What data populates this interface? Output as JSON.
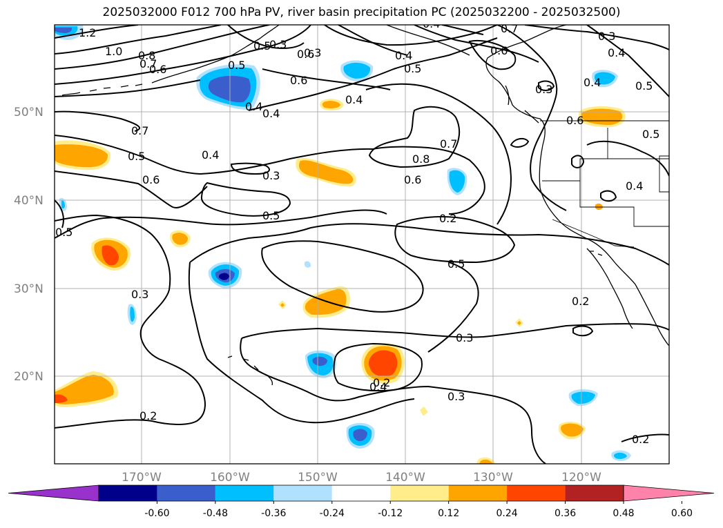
{
  "title": "2025032000 F012 700 hPa PV, river basin precipitation PC (2025032200 - 2025032500)",
  "lat_labels": [
    "50°N",
    "40°N",
    "30°N",
    "20°N"
  ],
  "lon_labels": [
    "170°W",
    "160°W",
    "150°W",
    "140°W",
    "130°W",
    "120°W"
  ],
  "colorbar": {
    "colors": [
      "#9932cc",
      "#00008b",
      "#3a5fcd",
      "#00bfff",
      "#b0e2ff",
      "#ffffff",
      "#ffec8b",
      "#ffa500",
      "#ff4500",
      "#b22222",
      "#ff82ab"
    ],
    "ticks": [
      "-0.60",
      "-0.48",
      "-0.36",
      "-0.24",
      "-0.12",
      "0.12",
      "0.24",
      "0.36",
      "0.48",
      "0.60"
    ]
  },
  "contour_labels": [
    "1.2",
    "1.0",
    "0.8",
    "0.7",
    "0.6",
    "0.7",
    "0.5",
    "0.5",
    "0.6",
    "0.5",
    "0.4",
    "0.4",
    "0.6",
    "0.5",
    "0.4",
    "0.3",
    "0.5",
    "0.3",
    "0.2",
    "0.2",
    "0.3",
    "0.5",
    "0.4",
    "0.3",
    "0.2",
    "0.6",
    "0.7",
    "0.8",
    "0.6",
    "0.4",
    "0.5",
    "0.3",
    "0.7",
    "0.6",
    "0.3",
    "0.4",
    "0.5",
    "0.4",
    "0.4",
    "0.2",
    "0.2",
    "0.3",
    "0.3",
    "0.4",
    "0.7",
    "0.4",
    "0.6",
    "0.5"
  ]
}
